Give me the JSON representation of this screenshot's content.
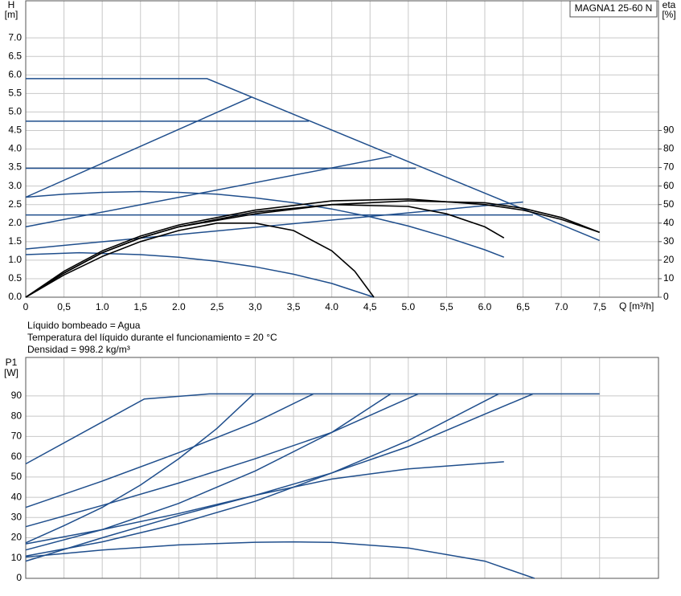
{
  "chart_data": [
    {
      "type": "line",
      "title": "MAGNA1 25-60 N",
      "ylabel": "H",
      "yunit": "[m]",
      "y2label": "eta",
      "y2unit": "[%]",
      "xlabel": "Q [m³/h]",
      "notes": [
        "Líquido bombeado = Agua",
        "Temperatura del líquido durante el funcionamiento = 20 °C",
        "Densidad = 998.2 kg/m³"
      ],
      "xlim": [
        0,
        8.27
      ],
      "ylim": [
        0,
        8
      ],
      "y2lim": [
        0,
        160
      ],
      "grid": true,
      "xticks": [
        {
          "value": 0,
          "label": "0"
        },
        {
          "value": 0.5,
          "label": "0,5"
        },
        {
          "value": 1,
          "label": "1.0"
        },
        {
          "value": 1.5,
          "label": "1,5"
        },
        {
          "value": 2,
          "label": "2.0"
        },
        {
          "value": 2.5,
          "label": "2,5"
        },
        {
          "value": 3,
          "label": "3,0"
        },
        {
          "value": 3.5,
          "label": "3,5"
        },
        {
          "value": 4,
          "label": "4.0"
        },
        {
          "value": 4.5,
          "label": "4,5"
        },
        {
          "value": 5,
          "label": "5.0"
        },
        {
          "value": 5.5,
          "label": "5,5"
        },
        {
          "value": 6,
          "label": "6.0"
        },
        {
          "value": 6.5,
          "label": "6,5"
        },
        {
          "value": 7,
          "label": "7.0"
        },
        {
          "value": 7.5,
          "label": "7,5"
        }
      ],
      "yticks": [
        {
          "value": 0,
          "label": "0.0"
        },
        0.5,
        {
          "value": 1,
          "label": "1.0"
        },
        1.5,
        {
          "value": 2,
          "label": "2.0"
        },
        2.5,
        {
          "value": 3,
          "label": "3.0"
        },
        3.5,
        {
          "value": 4,
          "label": "4.0"
        },
        4.5,
        {
          "value": 5,
          "label": "5.0"
        },
        5.5,
        {
          "value": 6,
          "label": "6.0"
        },
        6.5,
        {
          "value": 7,
          "label": "7.0"
        }
      ],
      "y2ticks": [
        0,
        10,
        20,
        30,
        40,
        50,
        60,
        70,
        80,
        90
      ],
      "series": [
        {
          "color": "#1f4e8c",
          "x": [
            0,
            2.37,
            7.5
          ],
          "values": [
            5.9,
            5.9,
            1.53
          ]
        },
        {
          "color": "#1f4e8c",
          "x": [
            0,
            3.7
          ],
          "values": [
            4.75,
            4.75
          ]
        },
        {
          "color": "#1f4e8c",
          "x": [
            0,
            5.1
          ],
          "values": [
            3.48,
            3.48
          ]
        },
        {
          "color": "#1f4e8c",
          "x": [
            0,
            6.63
          ],
          "values": [
            2.22,
            2.22
          ]
        },
        {
          "color": "#1f4e8c",
          "x": [
            0,
            2.95
          ],
          "values": [
            2.7,
            5.4
          ]
        },
        {
          "color": "#1f4e8c",
          "x": [
            0,
            4.78
          ],
          "values": [
            1.9,
            3.8
          ]
        },
        {
          "color": "#1f4e8c",
          "x": [
            0,
            6.5
          ],
          "values": [
            1.3,
            2.57
          ]
        },
        {
          "color": "#1f4e8c",
          "x": [
            0,
            0.5,
            1,
            1.5,
            2,
            2.5,
            3,
            3.5,
            4,
            4.5,
            5,
            5.5,
            6,
            6.25
          ],
          "values": [
            2.7,
            2.78,
            2.83,
            2.85,
            2.83,
            2.78,
            2.68,
            2.55,
            2.38,
            2.17,
            1.92,
            1.62,
            1.28,
            1.08
          ]
        },
        {
          "color": "#1f4e8c",
          "x": [
            0,
            0.7,
            1.5,
            2,
            2.5,
            3,
            3.5,
            4,
            4.55
          ],
          "values": [
            1.15,
            1.2,
            1.15,
            1.08,
            0.97,
            0.82,
            0.62,
            0.37,
            0
          ]
        },
        {
          "color": "#000000",
          "axis": "y2",
          "x": [
            0,
            0.5,
            1,
            1.5,
            2,
            2.5,
            3,
            3.5,
            4,
            4.3,
            4.55
          ],
          "values": [
            0,
            12,
            22,
            30,
            36,
            40,
            40,
            36,
            25,
            14,
            0
          ]
        },
        {
          "color": "#000000",
          "axis": "y2",
          "x": [
            0,
            0.5,
            1,
            1.5,
            2,
            3,
            4,
            5,
            5.5,
            6,
            6.25
          ],
          "values": [
            0,
            13,
            24,
            32,
            38,
            46,
            50,
            49,
            45,
            38,
            32
          ]
        },
        {
          "color": "#000000",
          "axis": "y2",
          "x": [
            0,
            0.5,
            1,
            1.5,
            2,
            3,
            4,
            5,
            6,
            6.5,
            7,
            7.5
          ],
          "values": [
            0,
            14,
            25,
            33,
            39,
            47,
            52,
            53,
            50,
            47,
            42,
            35
          ]
        },
        {
          "color": "#000000",
          "axis": "y2",
          "x": [
            0,
            0.5,
            1,
            1.5,
            2,
            3,
            4,
            5,
            6,
            6.5,
            7,
            7.5
          ],
          "values": [
            0,
            13,
            24,
            32,
            38,
            45,
            50,
            52,
            51,
            48,
            43,
            35
          ]
        }
      ]
    },
    {
      "type": "line",
      "ylabel": "P1",
      "yunit": "[W]",
      "xlim": [
        0,
        8.27
      ],
      "ylim": [
        0,
        109
      ],
      "grid": true,
      "yticks": [
        0,
        10,
        20,
        30,
        40,
        50,
        60,
        70,
        80,
        90
      ],
      "series": [
        {
          "color": "#1f4e8c",
          "x": [
            0,
            1.55,
            2.4,
            7.5
          ],
          "values": [
            56.5,
            88.5,
            91,
            91
          ]
        },
        {
          "color": "#1f4e8c",
          "x": [
            0,
            1,
            2,
            3,
            3.76
          ],
          "values": [
            35,
            48,
            62,
            77,
            91
          ]
        },
        {
          "color": "#1f4e8c",
          "x": [
            0,
            1,
            2,
            3,
            4,
            5.13
          ],
          "values": [
            25.5,
            36,
            47,
            59,
            72,
            91
          ]
        },
        {
          "color": "#1f4e8c",
          "x": [
            0,
            1,
            2,
            3,
            4,
            5,
            6,
            6.63
          ],
          "values": [
            17,
            24,
            32,
            41,
            52,
            65,
            81,
            91
          ]
        },
        {
          "color": "#1f4e8c",
          "x": [
            0,
            0.5,
            1,
            1.5,
            2,
            2.5,
            2.98
          ],
          "values": [
            17.5,
            26,
            35,
            46,
            59,
            74,
            91
          ]
        },
        {
          "color": "#1f4e8c",
          "x": [
            0,
            1,
            2,
            3,
            4,
            4.77
          ],
          "values": [
            14,
            24,
            37,
            53,
            72,
            91
          ]
        },
        {
          "color": "#1f4e8c",
          "x": [
            0,
            1,
            2,
            3,
            4,
            5,
            6.18
          ],
          "values": [
            11,
            18,
            27,
            38,
            52,
            68,
            91
          ]
        },
        {
          "color": "#1f4e8c",
          "x": [
            0,
            1,
            2,
            3,
            4,
            5,
            6.25
          ],
          "values": [
            8.5,
            20,
            31,
            41,
            49,
            54,
            57.5
          ]
        },
        {
          "color": "#1f4e8c",
          "x": [
            0,
            1,
            2,
            3,
            3.5,
            4,
            5,
            6,
            6.65
          ],
          "values": [
            10.5,
            14,
            16.5,
            17.8,
            18,
            17.7,
            15,
            8.5,
            0
          ]
        }
      ]
    }
  ]
}
